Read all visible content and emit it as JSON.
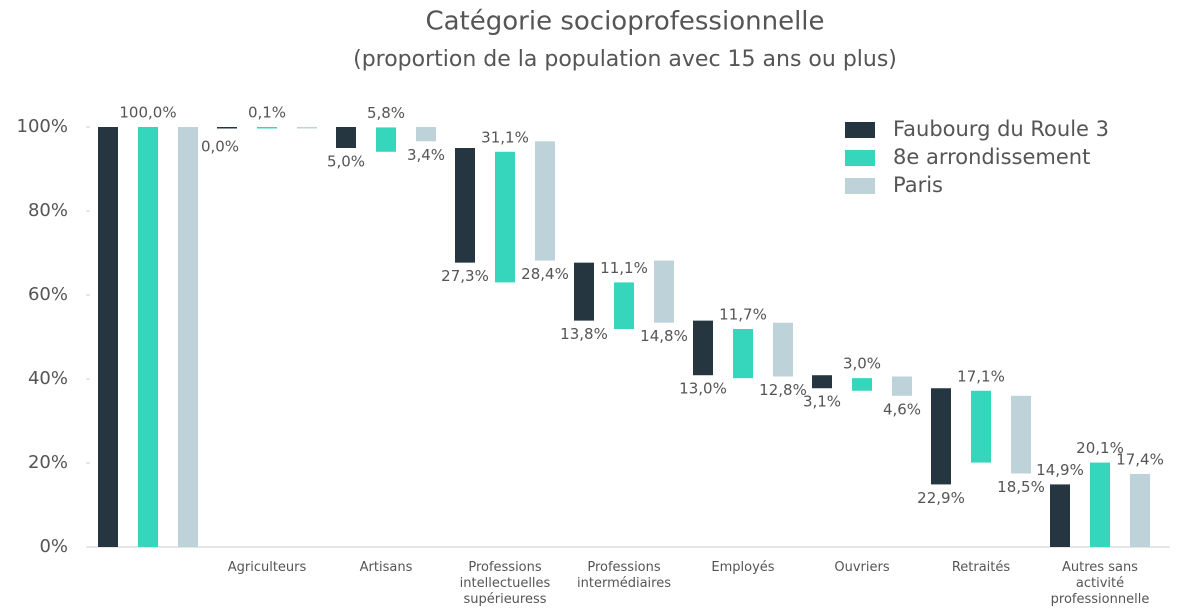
{
  "chart_data": {
    "type": "waterfall",
    "title": "Catégorie socioprofessionnelle",
    "subtitle": "(proportion de la population avec 15 ans ou plus)",
    "categories": [
      null,
      "Agriculteurs",
      "Artisans",
      "Professions intellectuelles supérieuress",
      "Professions intermédiaires",
      "Employés",
      "Ouvriers",
      "Retraités",
      "Autres sans activité professionnelle"
    ],
    "measure": [
      "total",
      "relative",
      "relative",
      "relative",
      "relative",
      "relative",
      "relative",
      "relative",
      "total"
    ],
    "series": [
      {
        "name": "Faubourg du Roule 3",
        "color": "#263640",
        "values": [
          100,
          0.0,
          5.0,
          27.3,
          13.8,
          13.0,
          3.1,
          22.9,
          14.9
        ],
        "value_labels": [
          null,
          "0,0%",
          "5,0%",
          "27,3%",
          "13,8%",
          "13,0%",
          "3,1%",
          "22,9%",
          "14,9%"
        ]
      },
      {
        "name": "8e arrondissement",
        "color": "#35d6bb",
        "values": [
          100,
          0.1,
          5.8,
          31.1,
          11.1,
          11.7,
          3.0,
          17.1,
          20.1
        ],
        "value_labels": [
          "100,0%",
          "0,1%",
          "5,8%",
          "31,1%",
          "11,1%",
          "11,7%",
          "3,0%",
          "17,1%",
          "20,1%"
        ]
      },
      {
        "name": "Paris",
        "color": "#bdd3d9",
        "values": [
          100,
          0.0,
          3.4,
          28.4,
          14.8,
          12.8,
          4.6,
          18.5,
          17.4
        ],
        "value_labels": [
          null,
          null,
          "3,4%",
          "28,4%",
          "14,8%",
          "12,8%",
          "4,6%",
          "18,5%",
          "17,4%"
        ]
      }
    ],
    "ylim": [
      0,
      100
    ],
    "yticks": [
      {
        "value": 0,
        "label": "0%"
      },
      {
        "value": 20,
        "label": "20%"
      },
      {
        "value": 40,
        "label": "40%"
      },
      {
        "value": 60,
        "label": "60%"
      },
      {
        "value": 80,
        "label": "80%"
      },
      {
        "value": 100,
        "label": "100%"
      }
    ],
    "legend": "top-right"
  }
}
